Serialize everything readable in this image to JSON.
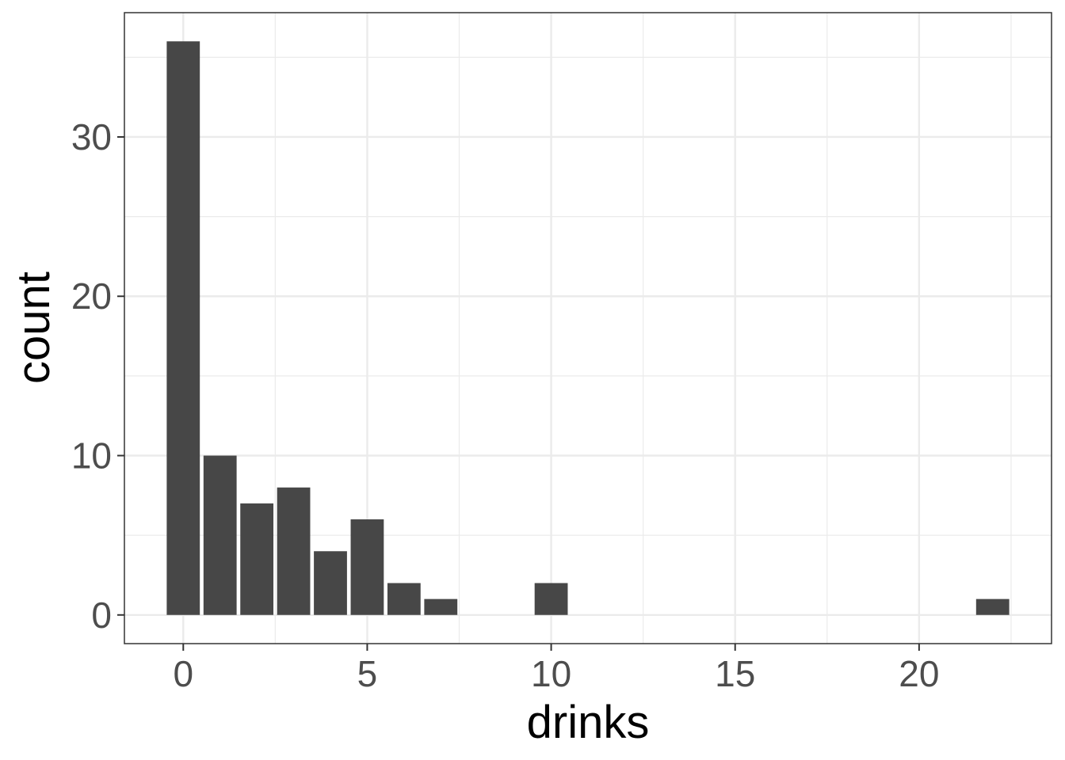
{
  "chart_data": {
    "type": "bar",
    "xlabel": "drinks",
    "ylabel": "count",
    "x": [
      0,
      1,
      2,
      3,
      4,
      5,
      6,
      7,
      10,
      22
    ],
    "values": [
      36,
      10,
      7,
      8,
      4,
      6,
      2,
      1,
      2,
      1
    ],
    "xlim": [
      -1.6,
      23.6
    ],
    "ylim": [
      -1.8,
      37.8
    ],
    "x_ticks": [
      0,
      5,
      10,
      15,
      20
    ],
    "x_tick_labels": [
      "0",
      "5",
      "10",
      "15",
      "20"
    ],
    "y_ticks": [
      0,
      10,
      20,
      30
    ],
    "y_tick_labels": [
      "0",
      "10",
      "20",
      "30"
    ],
    "grid": true,
    "bar_color": "#474747",
    "grid_color": "#ebebeb",
    "panel_border_color": "#333333"
  }
}
